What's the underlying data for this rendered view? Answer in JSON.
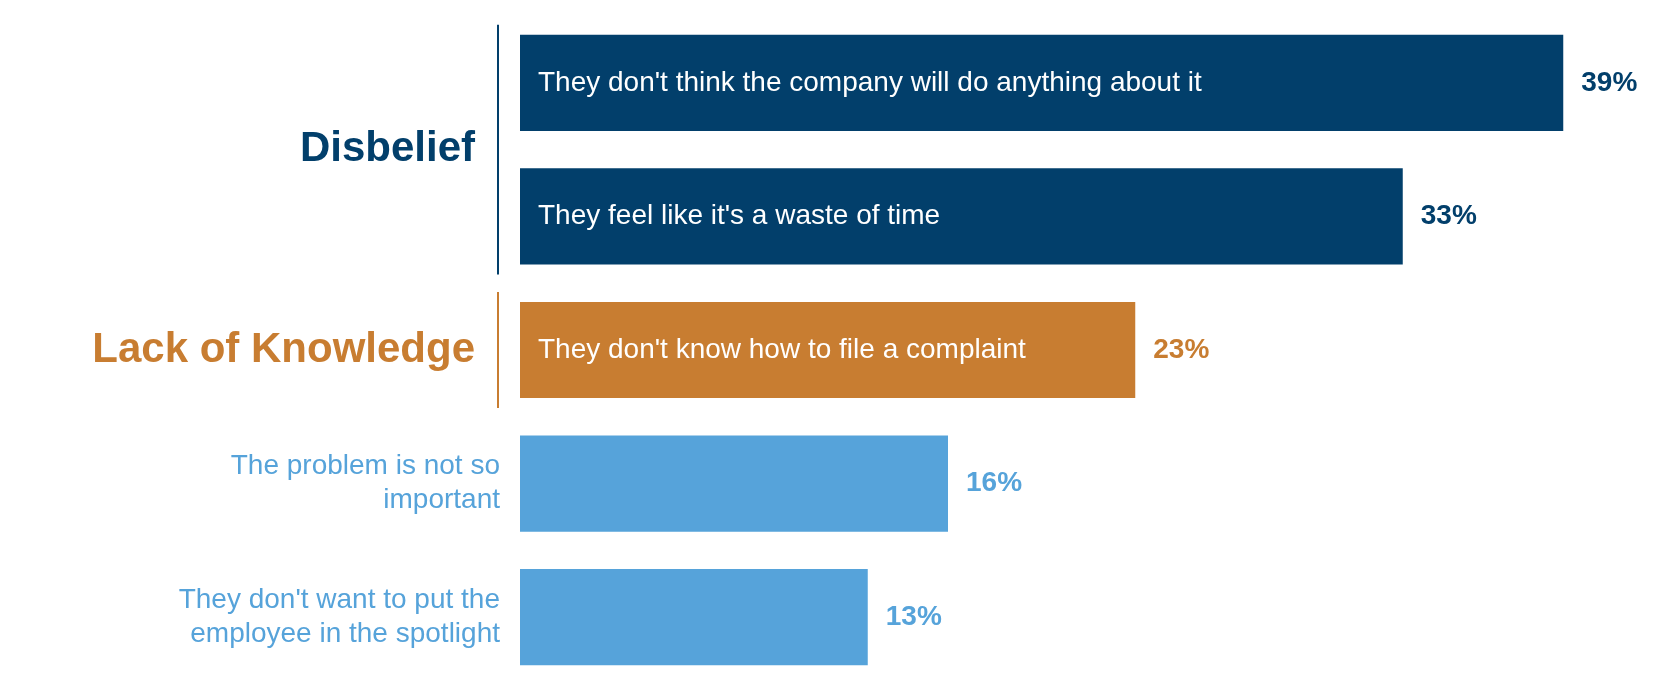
{
  "chart_data": {
    "type": "bar",
    "orientation": "horizontal",
    "stacked": true,
    "legend": false,
    "categories": [
      "They don't think the company will do anything about it",
      "They feel like it's a waste of time",
      "They don't know how to file a complaint",
      "The problem is not so important",
      "They don't want to put the employee in the spotlight"
    ],
    "series": [
      {
        "name": "Disbelief",
        "color": "#023f6b",
        "values": [
          39,
          33,
          null,
          null,
          null
        ],
        "value_labels": [
          "39%",
          "33%",
          null,
          null,
          null
        ]
      },
      {
        "name": "Lack of Knowledge",
        "color": "#c87d31",
        "values": [
          null,
          null,
          23,
          null,
          null
        ],
        "value_labels": [
          null,
          null,
          "23%",
          null,
          null
        ]
      },
      {
        "color": "#56a3da",
        "values": [
          null,
          null,
          null,
          16,
          13
        ],
        "value_labels": [
          null,
          null,
          null,
          "16%",
          "13%"
        ]
      }
    ]
  }
}
